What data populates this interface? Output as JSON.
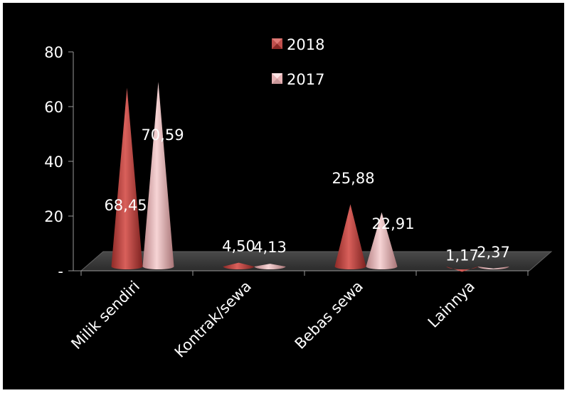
{
  "chart_data": {
    "type": "bar",
    "style": "cone-3d",
    "categories": [
      "Milik sendiri",
      "Kontrak/sewa",
      "Bebas sewa",
      "Lainnya"
    ],
    "series": [
      {
        "name": "2018",
        "values": [
          68.45,
          4.5,
          25.88,
          1.17
        ],
        "labels": [
          "68,45",
          "4,50",
          "25,88",
          "1,17"
        ],
        "color": "#c0504d"
      },
      {
        "name": "2017",
        "values": [
          70.59,
          4.13,
          22.91,
          2.37
        ],
        "labels": [
          "70,59",
          "4,13",
          "22,91",
          "2,37"
        ],
        "color": "#e6b3b5"
      }
    ],
    "y_ticks": [
      {
        "value": 0,
        "label": "-"
      },
      {
        "value": 20,
        "label": "20"
      },
      {
        "value": 40,
        "label": "40"
      },
      {
        "value": 60,
        "label": "60"
      },
      {
        "value": 80,
        "label": "80"
      }
    ],
    "ylim": [
      0,
      80
    ],
    "legend_position": "top-center",
    "background": "#000000",
    "floor_color": "#3a3a3a"
  }
}
